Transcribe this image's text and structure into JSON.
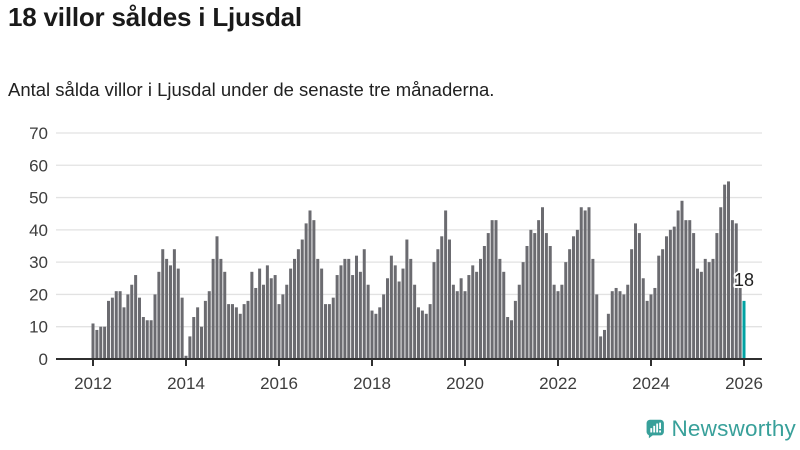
{
  "header": {
    "title": "18 villor såldes i Ljusdal",
    "subtitle": "Antal sålda villor i Ljusdal under de senaste tre månaderna."
  },
  "chart_data": {
    "type": "bar",
    "title": "18 villor såldes i Ljusdal",
    "xlabel": "",
    "ylabel": "",
    "start_month": "2012-01",
    "end_month": "2026-01",
    "ylim": [
      0,
      70
    ],
    "y_ticks": [
      0,
      10,
      20,
      30,
      40,
      50,
      60,
      70
    ],
    "x_tick_labels": [
      "2012",
      "2014",
      "2016",
      "2018",
      "2020",
      "2022",
      "2024",
      "2026"
    ],
    "grid": true,
    "values": [
      11,
      9,
      10,
      10,
      18,
      19,
      21,
      21,
      16,
      20,
      23,
      26,
      19,
      13,
      12,
      12,
      20,
      27,
      34,
      31,
      29,
      34,
      28,
      19,
      1,
      7,
      13,
      16,
      10,
      18,
      21,
      31,
      38,
      31,
      27,
      17,
      17,
      16,
      14,
      17,
      18,
      27,
      22,
      28,
      23,
      29,
      25,
      26,
      17,
      20,
      23,
      28,
      31,
      34,
      37,
      42,
      46,
      43,
      31,
      28,
      17,
      17,
      19,
      26,
      29,
      31,
      31,
      26,
      32,
      27,
      34,
      23,
      15,
      14,
      16,
      20,
      25,
      32,
      29,
      24,
      28,
      37,
      31,
      23,
      16,
      15,
      14,
      17,
      30,
      34,
      38,
      46,
      37,
      23,
      21,
      25,
      21,
      26,
      29,
      27,
      31,
      35,
      39,
      43,
      43,
      31,
      27,
      13,
      12,
      18,
      23,
      30,
      35,
      40,
      39,
      43,
      47,
      39,
      35,
      23,
      21,
      23,
      30,
      34,
      38,
      40,
      47,
      46,
      47,
      31,
      20,
      7,
      9,
      14,
      21,
      22,
      21,
      20,
      23,
      34,
      42,
      39,
      25,
      18,
      20,
      22,
      32,
      34,
      38,
      40,
      41,
      46,
      49,
      43,
      43,
      39,
      28,
      27,
      31,
      30,
      31,
      39,
      47,
      54,
      55,
      43,
      42,
      22,
      18
    ],
    "highlight_last_bar": true,
    "annotation": {
      "text": "18",
      "target": "last-bar"
    },
    "colors": {
      "bar": "#6b6b70",
      "highlight": "#00a2a2",
      "grid": "#e2e2e2",
      "axis": "#2f2f2f",
      "tick_label": "#3d3d3d",
      "annotation_text": "#222222",
      "annotation_halo": "#ffffff"
    }
  },
  "footer": {
    "brand": "Newsworthy",
    "brand_color": "#38a09a",
    "logo_icon": "bar-chart-speech-bubble-icon"
  }
}
